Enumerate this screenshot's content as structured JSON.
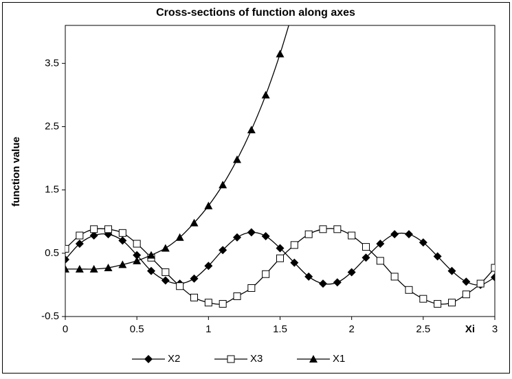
{
  "chart_data": {
    "type": "line",
    "title": "Cross-sections of function along axes",
    "xlabel": "Xi",
    "ylabel": "function value",
    "x": [
      0,
      0.1,
      0.2,
      0.3,
      0.4,
      0.5,
      0.6,
      0.7,
      0.8,
      0.9,
      1.0,
      1.1,
      1.2,
      1.3,
      1.4,
      1.5,
      1.6,
      1.7,
      1.8,
      1.9,
      2.0,
      2.1,
      2.2,
      2.3,
      2.4,
      2.5,
      2.6,
      2.7,
      2.8,
      2.9,
      3.0
    ],
    "series": [
      {
        "name": "X2",
        "color": "#000000",
        "marker": "diamond",
        "values": [
          0.4,
          0.65,
          0.78,
          0.8,
          0.7,
          0.47,
          0.22,
          0.07,
          0.02,
          0.1,
          0.3,
          0.55,
          0.75,
          0.83,
          0.77,
          0.58,
          0.35,
          0.13,
          0.02,
          0.04,
          0.2,
          0.43,
          0.65,
          0.8,
          0.8,
          0.67,
          0.45,
          0.22,
          0.05,
          0.0,
          0.12
        ]
      },
      {
        "name": "X3",
        "color": "#000000",
        "marker": "square",
        "values": [
          0.57,
          0.78,
          0.88,
          0.88,
          0.82,
          0.65,
          0.43,
          0.2,
          -0.02,
          -0.2,
          -0.28,
          -0.3,
          -0.18,
          -0.05,
          0.17,
          0.42,
          0.63,
          0.8,
          0.88,
          0.88,
          0.78,
          0.6,
          0.38,
          0.13,
          -0.08,
          -0.22,
          -0.3,
          -0.28,
          -0.15,
          0.02,
          0.27
        ]
      },
      {
        "name": "X1",
        "color": "#000000",
        "marker": "triangle",
        "values": [
          0.25,
          0.25,
          0.25,
          0.27,
          0.32,
          0.38,
          0.47,
          0.58,
          0.75,
          0.98,
          1.25,
          1.58,
          1.98,
          2.45,
          3.0,
          3.65,
          4.4,
          null,
          null,
          null,
          null,
          null,
          null,
          null,
          null,
          null,
          null,
          null,
          null,
          null,
          null
        ]
      }
    ],
    "xlim": [
      0,
      3
    ],
    "xticks": [
      0,
      0.5,
      1,
      1.5,
      2,
      2.5,
      3
    ],
    "ylim": [
      -0.5,
      4.1
    ],
    "yticks": [
      -0.5,
      0.5,
      1.5,
      2.5,
      3.5
    ],
    "grid": false,
    "legend": "bottom"
  }
}
